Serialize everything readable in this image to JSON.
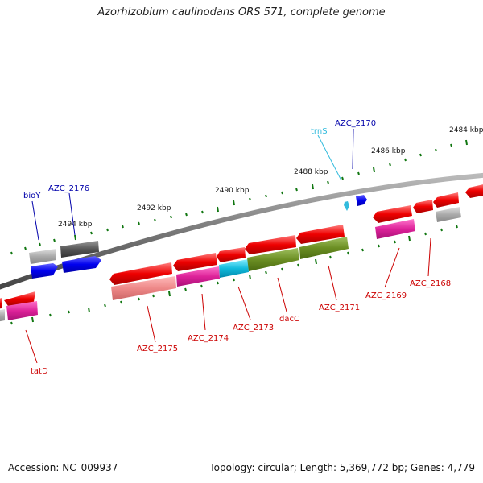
{
  "title": "Azorhizobium caulinodans ORS 571, complete genome",
  "footer": {
    "accession": "Accession: NC_009937",
    "stats": "Topology: circular; Length: 5,369,772 bp; Genes: 4,779"
  },
  "scale_labels": [
    "2484 kbp",
    "2486 kbp",
    "2488 kbp",
    "2490 kbp",
    "2492 kbp",
    "2494 kbp"
  ],
  "gene_labels_top": [
    {
      "text": "trnS",
      "color": "#33bbdd"
    },
    {
      "text": "AZC_2170",
      "color": "#0000aa"
    },
    {
      "text": "bioY",
      "color": "#0000aa"
    },
    {
      "text": "AZC_2176",
      "color": "#0000aa"
    }
  ],
  "gene_labels_bottom": [
    {
      "text": "tatD",
      "color": "#cc0000"
    },
    {
      "text": "AZC_2175",
      "color": "#cc0000"
    },
    {
      "text": "AZC_2174",
      "color": "#cc0000"
    },
    {
      "text": "AZC_2173",
      "color": "#cc0000"
    },
    {
      "text": "dacC",
      "color": "#cc0000"
    },
    {
      "text": "AZC_2171",
      "color": "#cc0000"
    },
    {
      "text": "AZC_2169",
      "color": "#cc0000"
    },
    {
      "text": "AZC_2168",
      "color": "#cc0000"
    }
  ],
  "colors": {
    "cds": "#ee0000",
    "forward_gene": "#0000ee",
    "trna": "#33bbdd",
    "backbone": "#777777",
    "ticks": "#117711",
    "cog_pink": "#dd2299",
    "cog_lightred": "#ee8888",
    "cog_olive": "#6b8e23",
    "cog_cyan": "#11bbdd",
    "cog_grey": "#aaaaaa",
    "cog_dark": "#555555"
  }
}
